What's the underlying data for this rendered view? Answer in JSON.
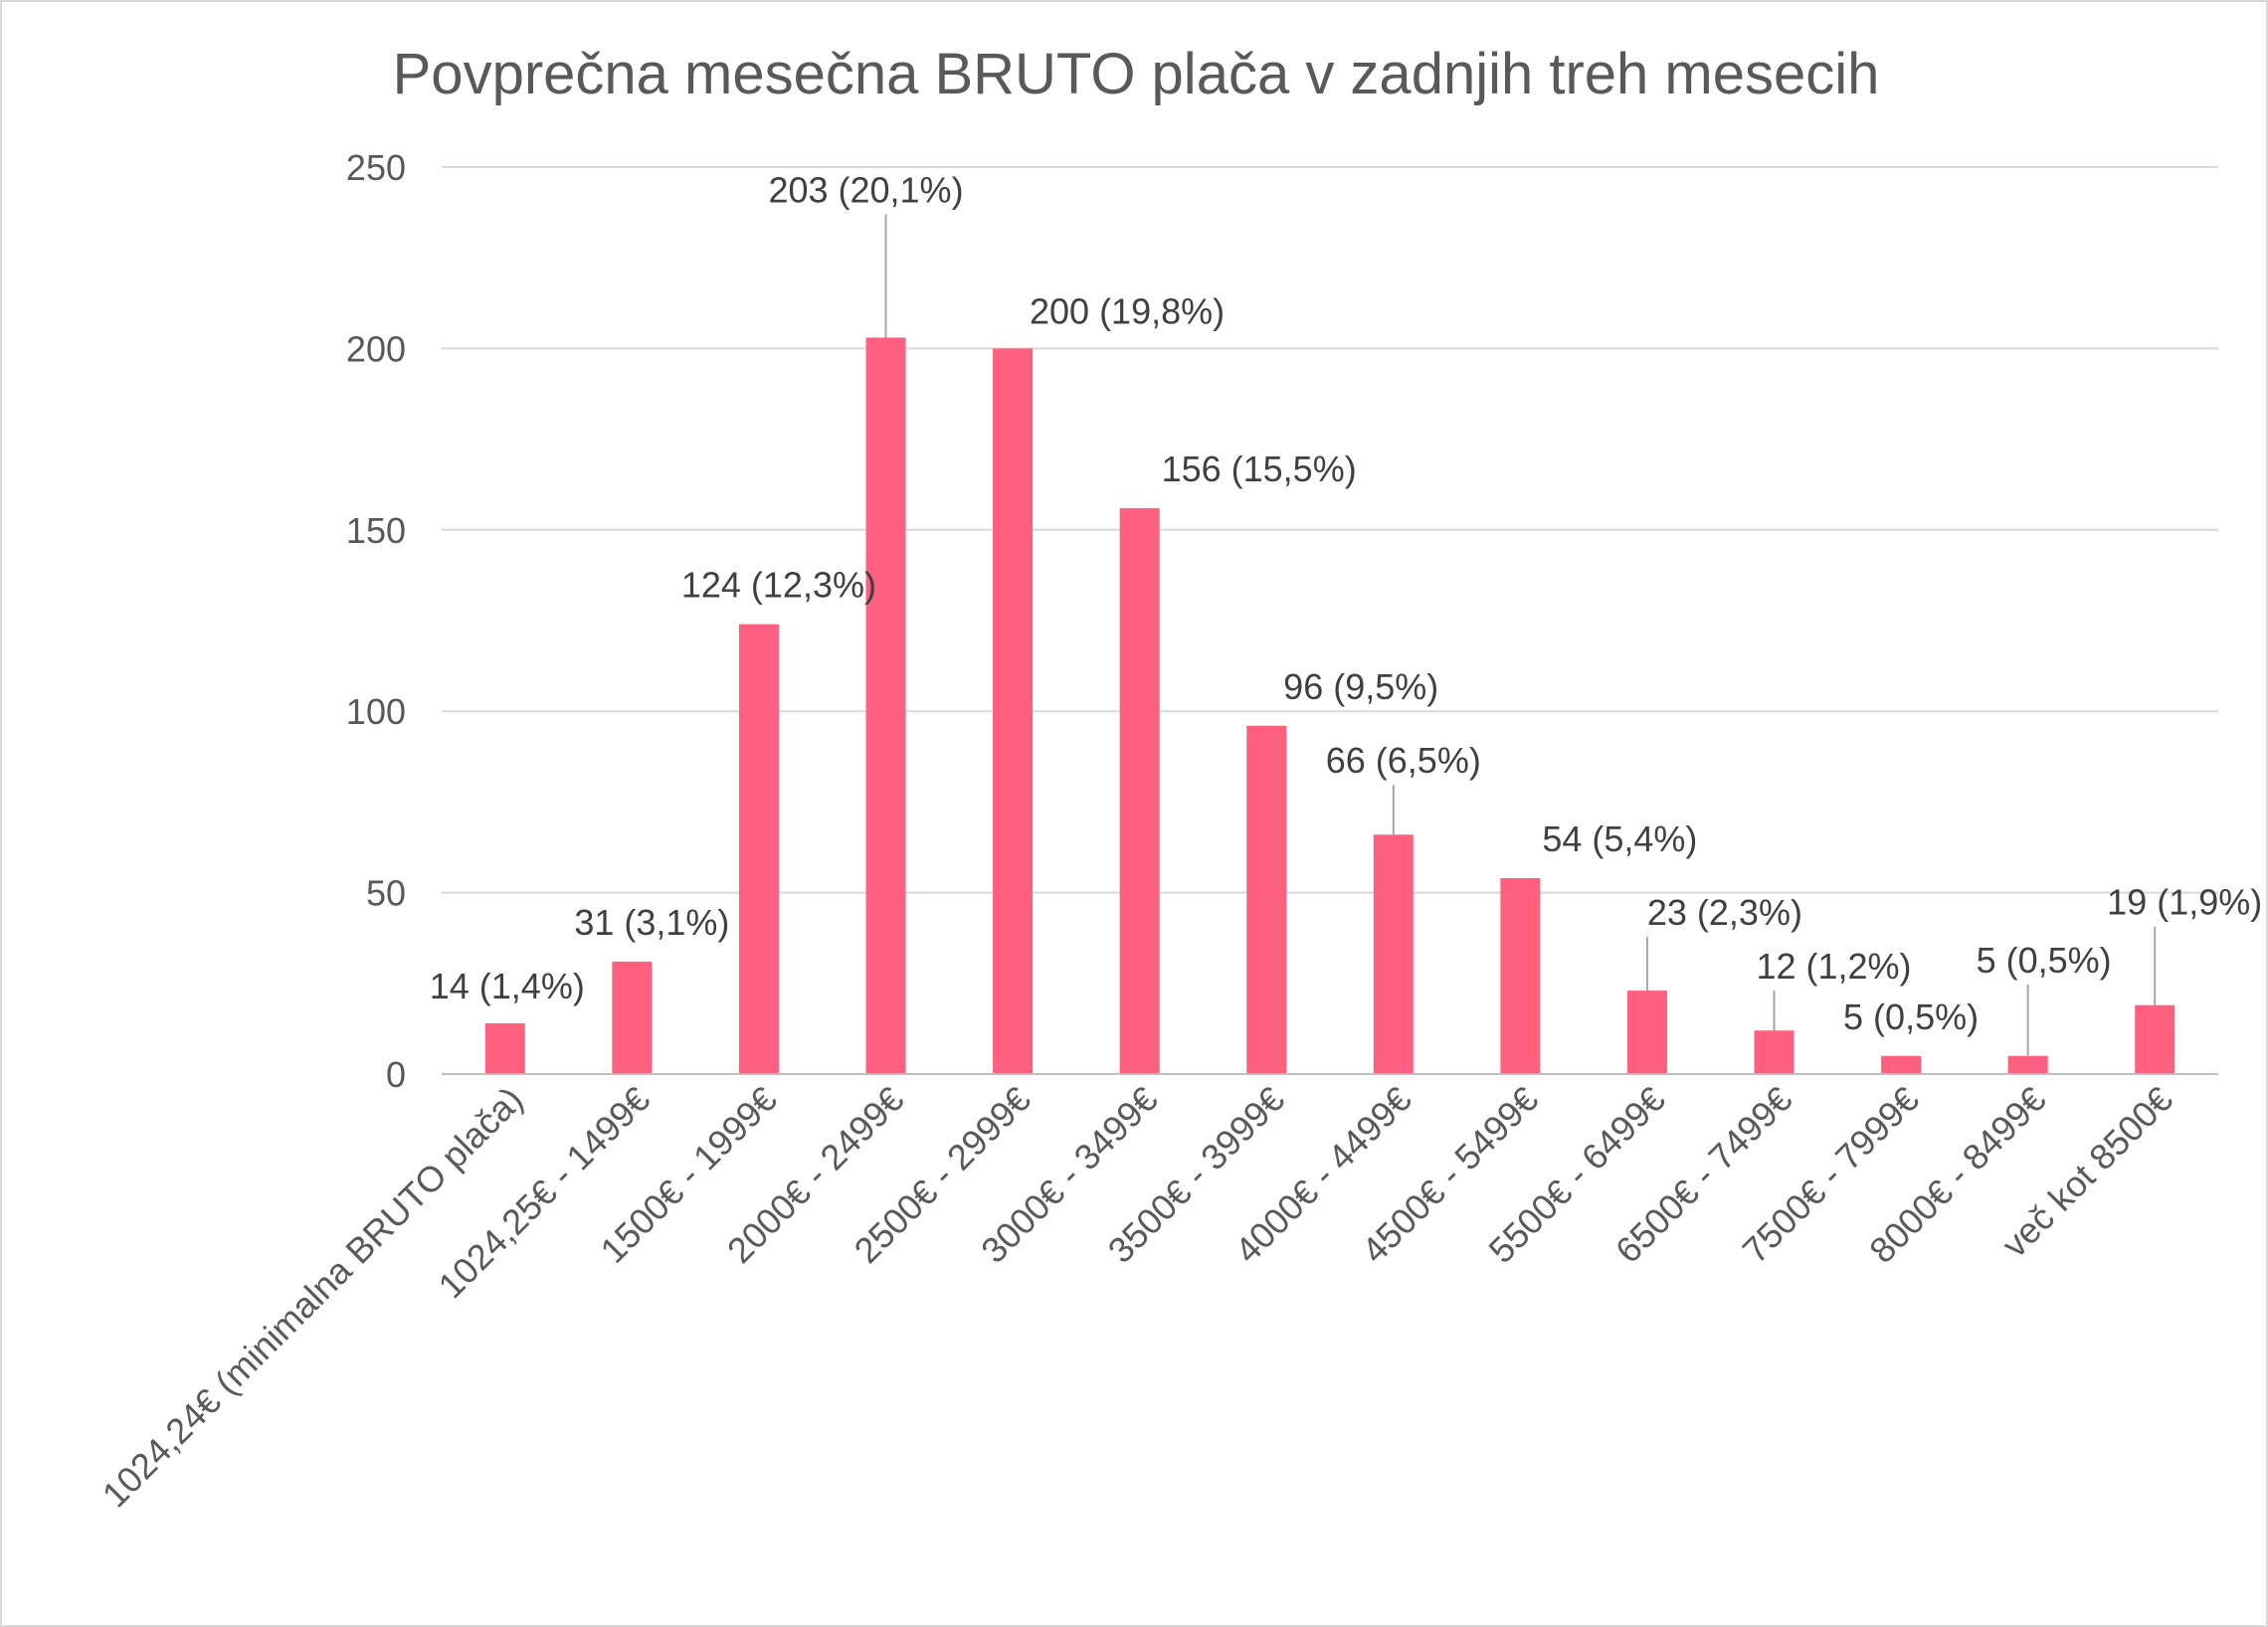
{
  "chart_data": {
    "type": "bar",
    "title": "Povprečna mesečna BRUTO plača v zadnjih treh mesecih",
    "xlabel": "",
    "ylabel": "",
    "ylim": [
      0,
      250
    ],
    "yticks": [
      "0",
      "50",
      "100",
      "150",
      "200",
      "250"
    ],
    "grid": true,
    "legend": "none",
    "bar_color": "#ff6080",
    "categories": [
      "1024,24€ (minimalna BRUTO plača)",
      "1024,25€ - 1499€",
      "1500€ - 1999€",
      "2000€ - 2499€",
      "2500€ - 2999€",
      "3000€ - 3499€",
      "3500€ - 3999€",
      "4000€ - 4499€",
      "4500€ - 5499€",
      "5500€ - 6499€",
      "6500€ - 7499€",
      "7500€ - 7999€",
      "8000€ - 8499€",
      "več kot 8500€"
    ],
    "values": [
      14,
      31,
      124,
      203,
      200,
      156,
      96,
      66,
      54,
      23,
      12,
      5,
      5,
      19
    ],
    "data_labels": [
      "14 (1,4%)",
      "31 (3,1%)",
      "124 (12,3%)",
      "203 (20,1%)",
      "200 (19,8%)",
      "156 (15,5%)",
      "96 (9,5%)",
      "66 (6,5%)",
      "54 (5,4%)",
      "23 (2,3%)",
      "12 (1,2%)",
      "5 (0,5%)",
      "5 (0,5%)",
      "19 (1,9%)"
    ]
  }
}
